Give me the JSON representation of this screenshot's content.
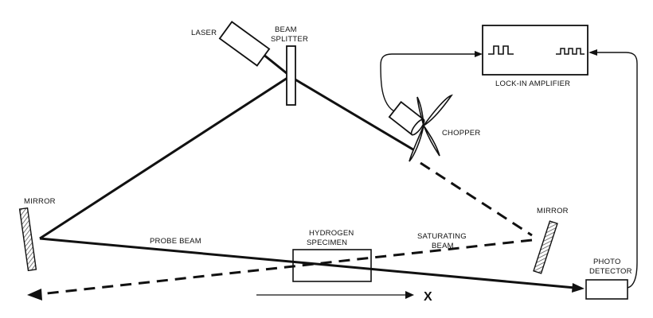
{
  "labels": {
    "laser": "LASER",
    "beam_splitter_line1": "BEAM",
    "beam_splitter_line2": "SPLITTER",
    "lockin": "LOCK-IN AMPLIFIER",
    "chopper": "CHOPPER",
    "mirror_left": "MIRROR",
    "mirror_right": "MIRROR",
    "probe_beam": "PROBE BEAM",
    "specimen_line1": "HYDROGEN",
    "specimen_line2": "SPECIMEN",
    "saturating_line1": "SATURATING",
    "saturating_line2": "BEAM",
    "photo_line1": "PHOTO",
    "photo_line2": "DETECTOR",
    "x_axis": "X"
  },
  "colors": {
    "ink": "#111111",
    "background": "#ffffff",
    "hatch": "#555555"
  }
}
